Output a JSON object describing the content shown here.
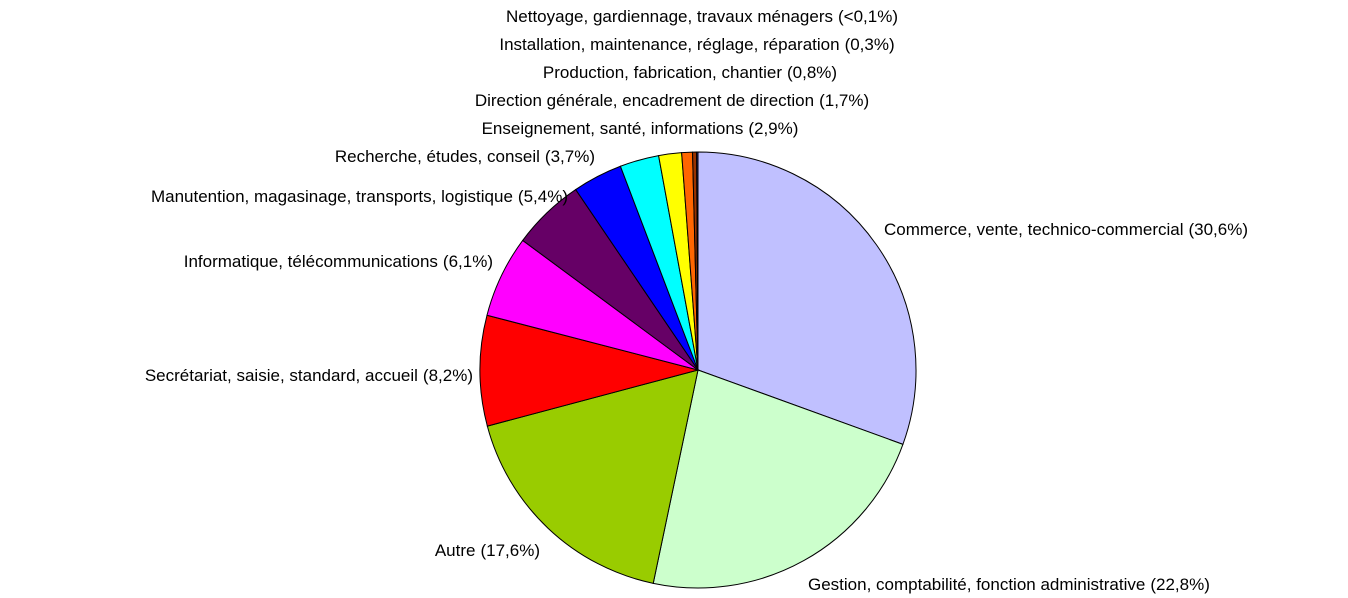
{
  "chart_data": {
    "type": "pie",
    "categories": [
      "Commerce, vente, technico-commercial",
      "Gestion, comptabilité, fonction administrative",
      "Autre",
      "Secrétariat, saisie, standard, accueil",
      "Informatique, télécommunications",
      "Manutention, magasinage, transports, logistique",
      "Recherche, études, conseil",
      "Enseignement, santé, informations",
      "Direction générale, encadrement de direction",
      "Production, fabrication, chantier",
      "Installation, maintenance, réglage, réparation",
      "Nettoyage, gardiennage, travaux ménagers"
    ],
    "values": [
      30.6,
      22.8,
      17.6,
      8.2,
      6.1,
      5.4,
      3.7,
      2.9,
      1.7,
      0.8,
      0.3,
      0.1
    ],
    "value_labels": [
      "(30,6%)",
      "(22,8%)",
      "(17,6%)",
      "(8,2%)",
      "(6,1%)",
      "(5,4%)",
      "(3,7%)",
      "(2,9%)",
      "(1,7%)",
      "(0,8%)",
      "(0,3%)",
      "(<0,1%)"
    ],
    "colors": [
      "#c0c0ff",
      "#ccffcc",
      "#99cc00",
      "#ff0000",
      "#ff00ff",
      "#660066",
      "#0000ff",
      "#00ffff",
      "#ffff00",
      "#ff6600",
      "#993300",
      "#333399"
    ]
  }
}
